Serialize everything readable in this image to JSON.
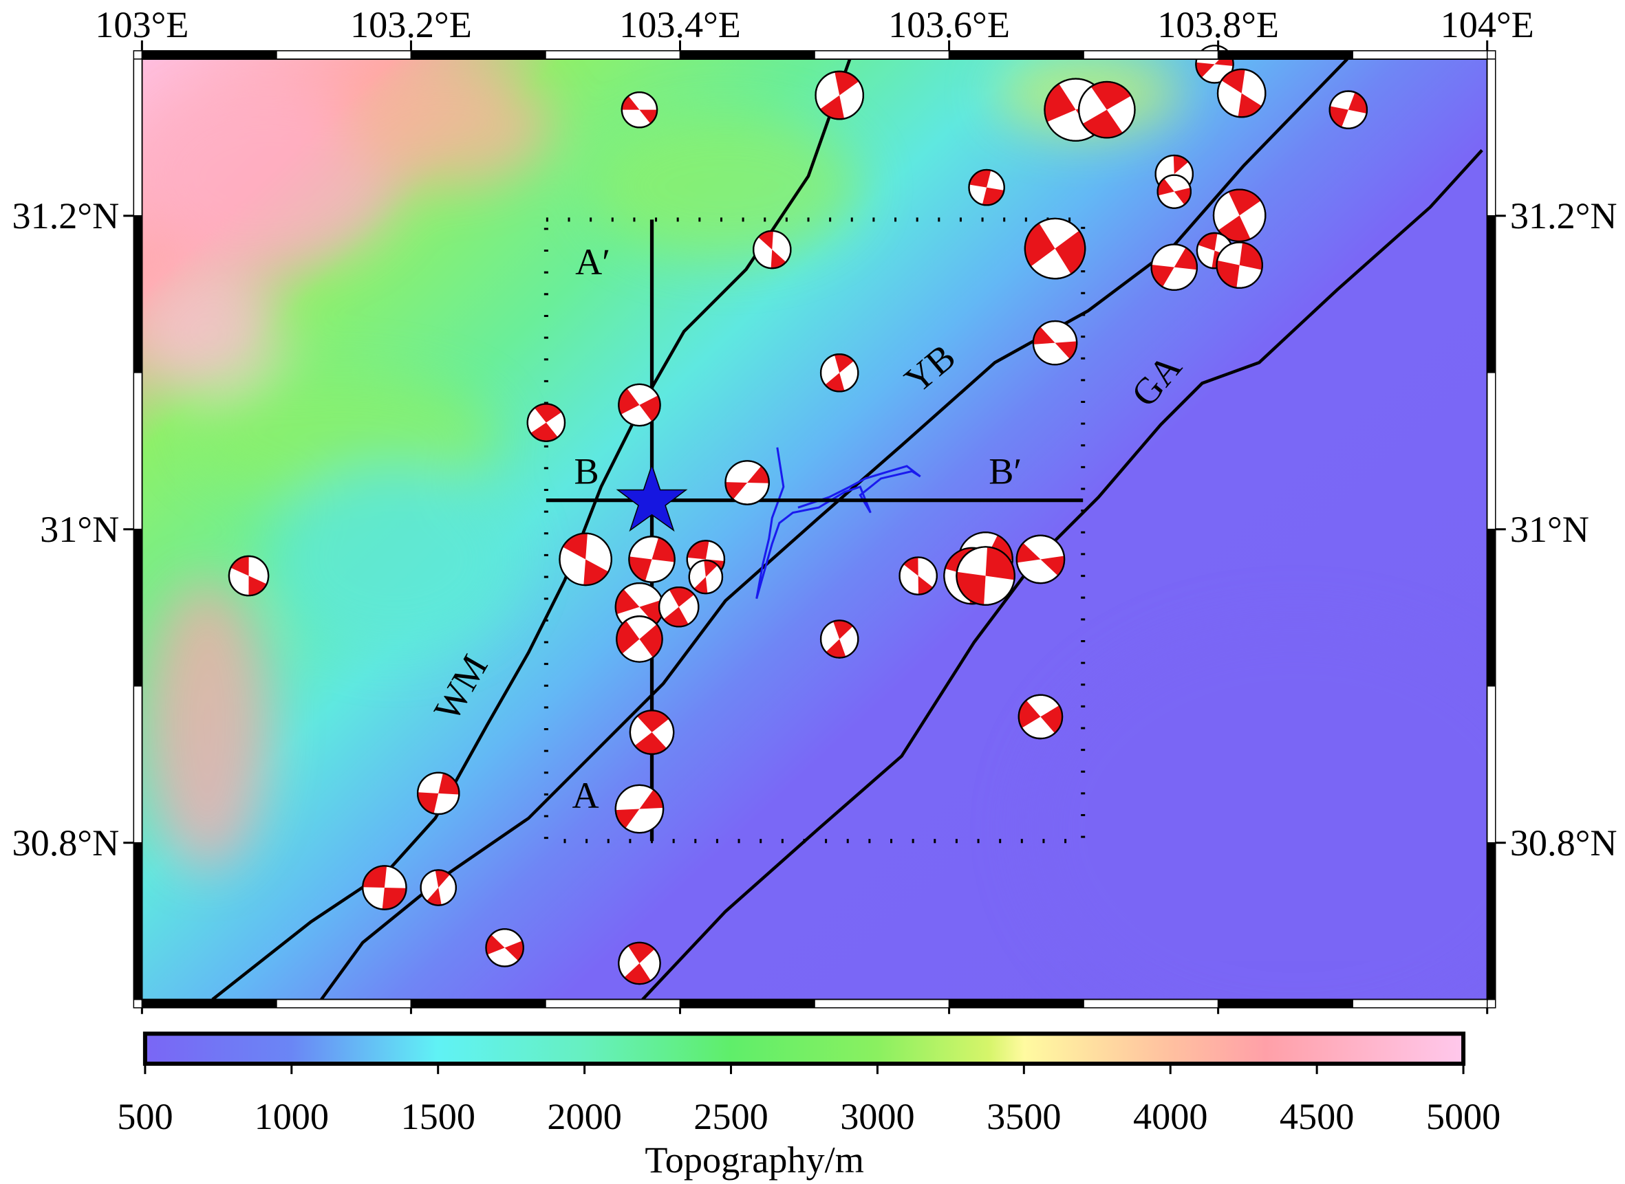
{
  "map": {
    "xlim": [
      103,
      104
    ],
    "ylim": [
      30.7,
      31.3
    ],
    "xticks": [
      {
        "value": 103,
        "label": "103°E"
      },
      {
        "value": 103.2,
        "label": "103.2°E"
      },
      {
        "value": 103.4,
        "label": "103.4°E"
      },
      {
        "value": 103.6,
        "label": "103.6°E"
      },
      {
        "value": 103.8,
        "label": "103.8°E"
      },
      {
        "value": 104,
        "label": "104°E"
      }
    ],
    "yticks": [
      {
        "value": 30.8,
        "label": "30.8°N"
      },
      {
        "value": 31,
        "label": "31°N"
      },
      {
        "value": 31.2,
        "label": "31.2°N"
      }
    ],
    "faults": [
      "WM",
      "YB",
      "GA"
    ],
    "profiles": [
      "A",
      "A′",
      "B",
      "B′"
    ]
  },
  "colorbar": {
    "range": [
      500,
      5000
    ],
    "ticks": [
      500,
      1000,
      1500,
      2000,
      2500,
      3000,
      3500,
      4000,
      4500,
      5000
    ],
    "label": "Topography/m"
  }
}
